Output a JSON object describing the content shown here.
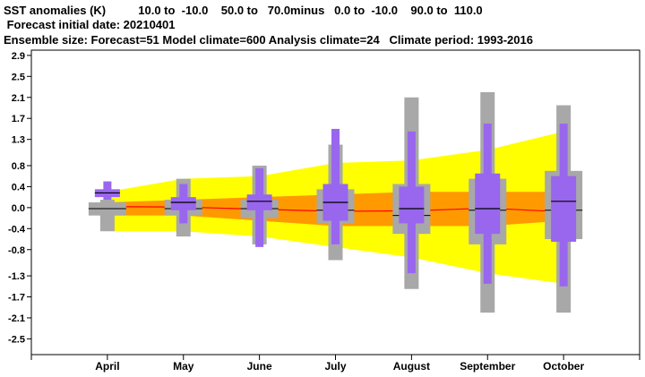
{
  "header": {
    "line1": "SST anomalies (K)          10.0 to  -10.0    50.0 to   70.0minus   0.0 to  -10.0    90.0 to  110.0",
    "line2": " Forecast initial date: 20210401",
    "line3": "Ensemble size: Forecast=51 Model climate=600 Analysis climate=24   Climate period: 1993-2016"
  },
  "colors": {
    "background": "#ffffff",
    "climate_outer_band": "#ffff00",
    "climate_inner_band": "#ff9900",
    "climate_median_line": "#ff0000",
    "analysis_box": "#a8a8a8",
    "forecast_box": "#9966ee",
    "median_tick": "#000000",
    "axis": "#000000"
  },
  "chart_data": {
    "type": "box",
    "title": "SST anomalies (K)",
    "xlabel": "",
    "ylabel": "",
    "ylim": [
      -2.8,
      3.0
    ],
    "yticks": [
      "2.9",
      "2.5",
      "2.1",
      "1.7",
      "1.3",
      "0.8",
      "0.4",
      "0.0",
      "-0.4",
      "-0.8",
      "-1.3",
      "-1.7",
      "-2.1",
      "-2.5"
    ],
    "ytick_values": [
      2.9,
      2.5,
      2.1,
      1.7,
      1.3,
      0.8,
      0.4,
      0.0,
      -0.4,
      -0.8,
      -1.3,
      -1.7,
      -2.1,
      -2.5
    ],
    "categories": [
      "April",
      "May",
      "June",
      "July",
      "August",
      "September",
      "October"
    ],
    "model_climate": {
      "outer_band": [
        [
          -0.45,
          0.3
        ],
        [
          -0.45,
          0.55
        ],
        [
          -0.55,
          0.6
        ],
        [
          -0.75,
          0.85
        ],
        [
          -0.95,
          0.9
        ],
        [
          -1.25,
          1.1
        ],
        [
          -1.45,
          1.45
        ]
      ],
      "inner_band": [
        [
          -0.15,
          0.1
        ],
        [
          -0.15,
          0.15
        ],
        [
          -0.25,
          0.2
        ],
        [
          -0.35,
          0.25
        ],
        [
          -0.35,
          0.3
        ],
        [
          -0.35,
          0.3
        ],
        [
          -0.25,
          0.3
        ]
      ],
      "median": [
        0.02,
        0.01,
        -0.03,
        -0.07,
        -0.06,
        -0.01,
        -0.08
      ]
    },
    "analysis_climate": {
      "whisker": [
        [
          -0.45,
          0.15
        ],
        [
          -0.55,
          0.55
        ],
        [
          -0.7,
          0.8
        ],
        [
          -1.0,
          1.2
        ],
        [
          -1.55,
          2.1
        ],
        [
          -2.0,
          2.2
        ],
        [
          -2.0,
          1.95
        ]
      ],
      "box": [
        [
          -0.15,
          0.1
        ],
        [
          -0.15,
          0.15
        ],
        [
          -0.2,
          0.15
        ],
        [
          -0.3,
          0.35
        ],
        [
          -0.5,
          0.45
        ],
        [
          -0.7,
          0.55
        ],
        [
          -0.6,
          0.7
        ]
      ],
      "median": [
        -0.02,
        -0.02,
        -0.02,
        -0.05,
        -0.15,
        -0.05,
        -0.05
      ]
    },
    "forecast": {
      "whisker": [
        [
          0.15,
          0.5
        ],
        [
          -0.3,
          0.45
        ],
        [
          -0.75,
          0.75
        ],
        [
          -0.7,
          1.5
        ],
        [
          -1.25,
          1.45
        ],
        [
          -1.45,
          1.6
        ],
        [
          -1.5,
          1.6
        ]
      ],
      "box": [
        [
          0.2,
          0.35
        ],
        [
          -0.05,
          0.2
        ],
        [
          -0.05,
          0.25
        ],
        [
          -0.25,
          0.45
        ],
        [
          -0.3,
          0.4
        ],
        [
          -0.5,
          0.65
        ],
        [
          -0.65,
          0.6
        ]
      ],
      "median": [
        0.28,
        0.1,
        0.12,
        0.1,
        -0.02,
        -0.02,
        0.12
      ]
    }
  }
}
